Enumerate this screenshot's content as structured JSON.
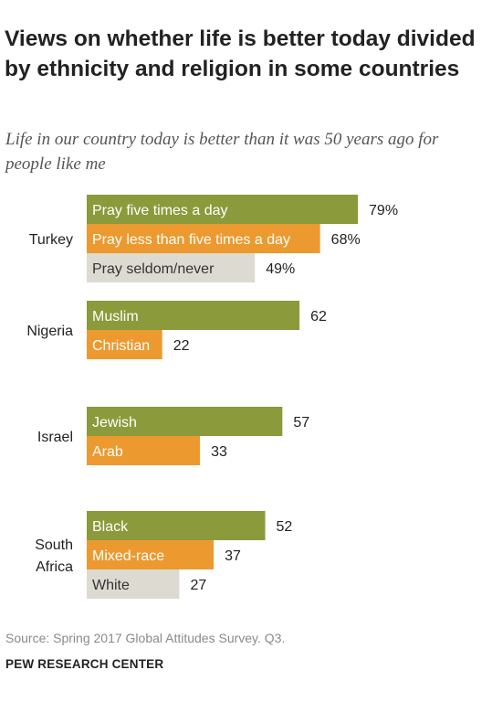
{
  "header": {
    "title": "Views on whether life is better today divided by ethnicity and religion in some countries",
    "subtitle": "Life in our country today is better than it was 50 years ago for people like me"
  },
  "footer": {
    "source": "Source: Spring 2017 Global Attitudes Survey. Q3.",
    "brand": "PEW RESEARCH CENTER"
  },
  "colors": {
    "green": "#8b9a3b",
    "orange": "#ec9a2f",
    "gray": "#dddbd1"
  },
  "chart_data": {
    "type": "bar",
    "orientation": "horizontal",
    "xlim": [
      0,
      100
    ],
    "groups": [
      {
        "name": [
          "Turkey"
        ],
        "bars": [
          {
            "label": "Pray five times a day",
            "value": 79,
            "display": "79%",
            "color": "green"
          },
          {
            "label": "Pray less than five times a day",
            "value": 68,
            "display": "68%",
            "color": "orange"
          },
          {
            "label": "Pray seldom/never",
            "value": 49,
            "display": "49%",
            "color": "gray"
          }
        ]
      },
      {
        "name": [
          "Nigeria"
        ],
        "bars": [
          {
            "label": "Muslim",
            "value": 62,
            "display": "62",
            "color": "green"
          },
          {
            "label": "Christian",
            "value": 22,
            "display": "22",
            "color": "orange"
          }
        ]
      },
      {
        "name": [
          "Israel"
        ],
        "bars": [
          {
            "label": "Jewish",
            "value": 57,
            "display": "57",
            "color": "green"
          },
          {
            "label": "Arab",
            "value": 33,
            "display": "33",
            "color": "orange"
          }
        ]
      },
      {
        "name": [
          "South",
          "Africa"
        ],
        "bars": [
          {
            "label": "Black",
            "value": 52,
            "display": "52",
            "color": "green"
          },
          {
            "label": "Mixed-race",
            "value": 37,
            "display": "37",
            "color": "orange"
          },
          {
            "label": "White",
            "value": 27,
            "display": "27",
            "color": "gray"
          }
        ]
      }
    ]
  }
}
